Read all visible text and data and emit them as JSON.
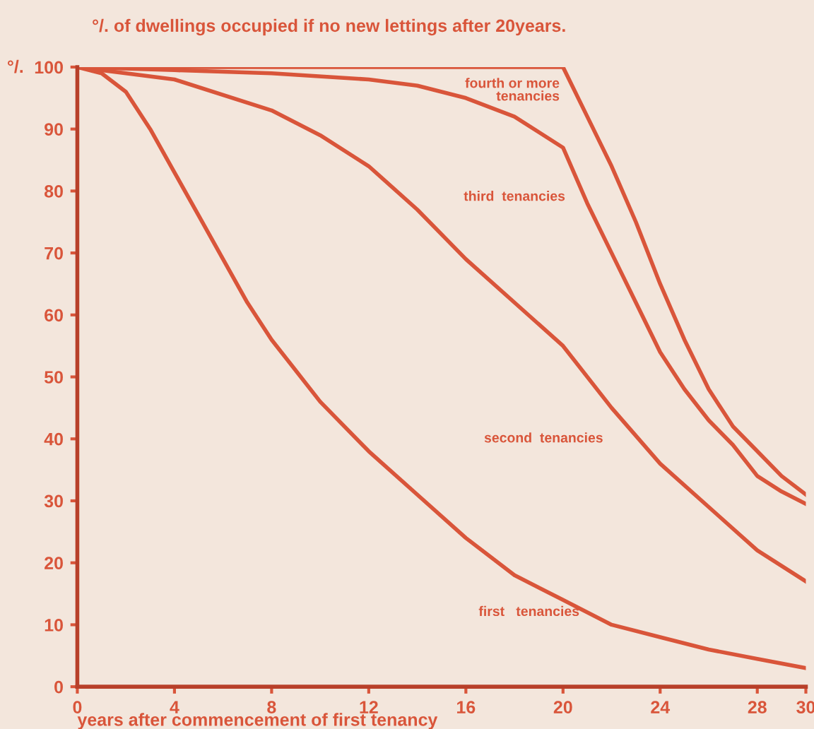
{
  "chart_data": {
    "type": "line",
    "title": "°/. of dwellings occupied if no new lettings after 20years.",
    "xlabel": "years after commencement of first tenancy",
    "xlim": [
      0,
      30
    ],
    "xticks": [
      0,
      4,
      8,
      12,
      16,
      20,
      24,
      28,
      30
    ],
    "ylim": [
      0,
      100
    ],
    "yticks": [
      0,
      10,
      20,
      30,
      40,
      50,
      60,
      70,
      80,
      90,
      100
    ],
    "ylabel": "°/.",
    "grid": false,
    "legend": false,
    "marker": "none",
    "line_style": "solid",
    "series": [
      {
        "color": "#d9553a",
        "x": [
          0,
          1,
          2,
          3,
          4,
          5,
          6,
          7,
          8,
          9,
          10,
          12,
          14,
          16,
          18,
          20,
          22,
          24,
          26,
          28,
          30
        ],
        "values": [
          100,
          99,
          96,
          90,
          83,
          76,
          69,
          62,
          56,
          51,
          46,
          38,
          31,
          24,
          18,
          14,
          10,
          8,
          6,
          4.5,
          3
        ]
      },
      {
        "color": "#d9553a",
        "x": [
          0,
          4,
          8,
          10,
          12,
          14,
          16,
          18,
          20,
          22,
          24,
          26,
          28,
          30
        ],
        "values": [
          100,
          98,
          93,
          89,
          84,
          77,
          69,
          62,
          55,
          45,
          36,
          29,
          22,
          17
        ]
      },
      {
        "color": "#d9553a",
        "x": [
          0,
          4,
          8,
          12,
          14,
          16,
          18,
          20,
          21,
          22,
          23,
          24,
          25,
          26,
          27,
          28,
          29,
          30
        ],
        "values": [
          100,
          99.5,
          99,
          98,
          97,
          95,
          92,
          87,
          78,
          70,
          62,
          54,
          48,
          43,
          39,
          34,
          31.5,
          29.5
        ]
      },
      {
        "color": "#d9553a",
        "x": [
          0,
          20,
          21,
          22,
          23,
          24,
          25,
          26,
          27,
          28,
          29,
          30
        ],
        "values": [
          100,
          100,
          92,
          84,
          75,
          65,
          56,
          48,
          42,
          38,
          34,
          31
        ]
      }
    ],
    "annotations": [
      "first   tenancies",
      "second  tenancies",
      "third  tenancies",
      "fourth or more\ntenancies"
    ]
  }
}
